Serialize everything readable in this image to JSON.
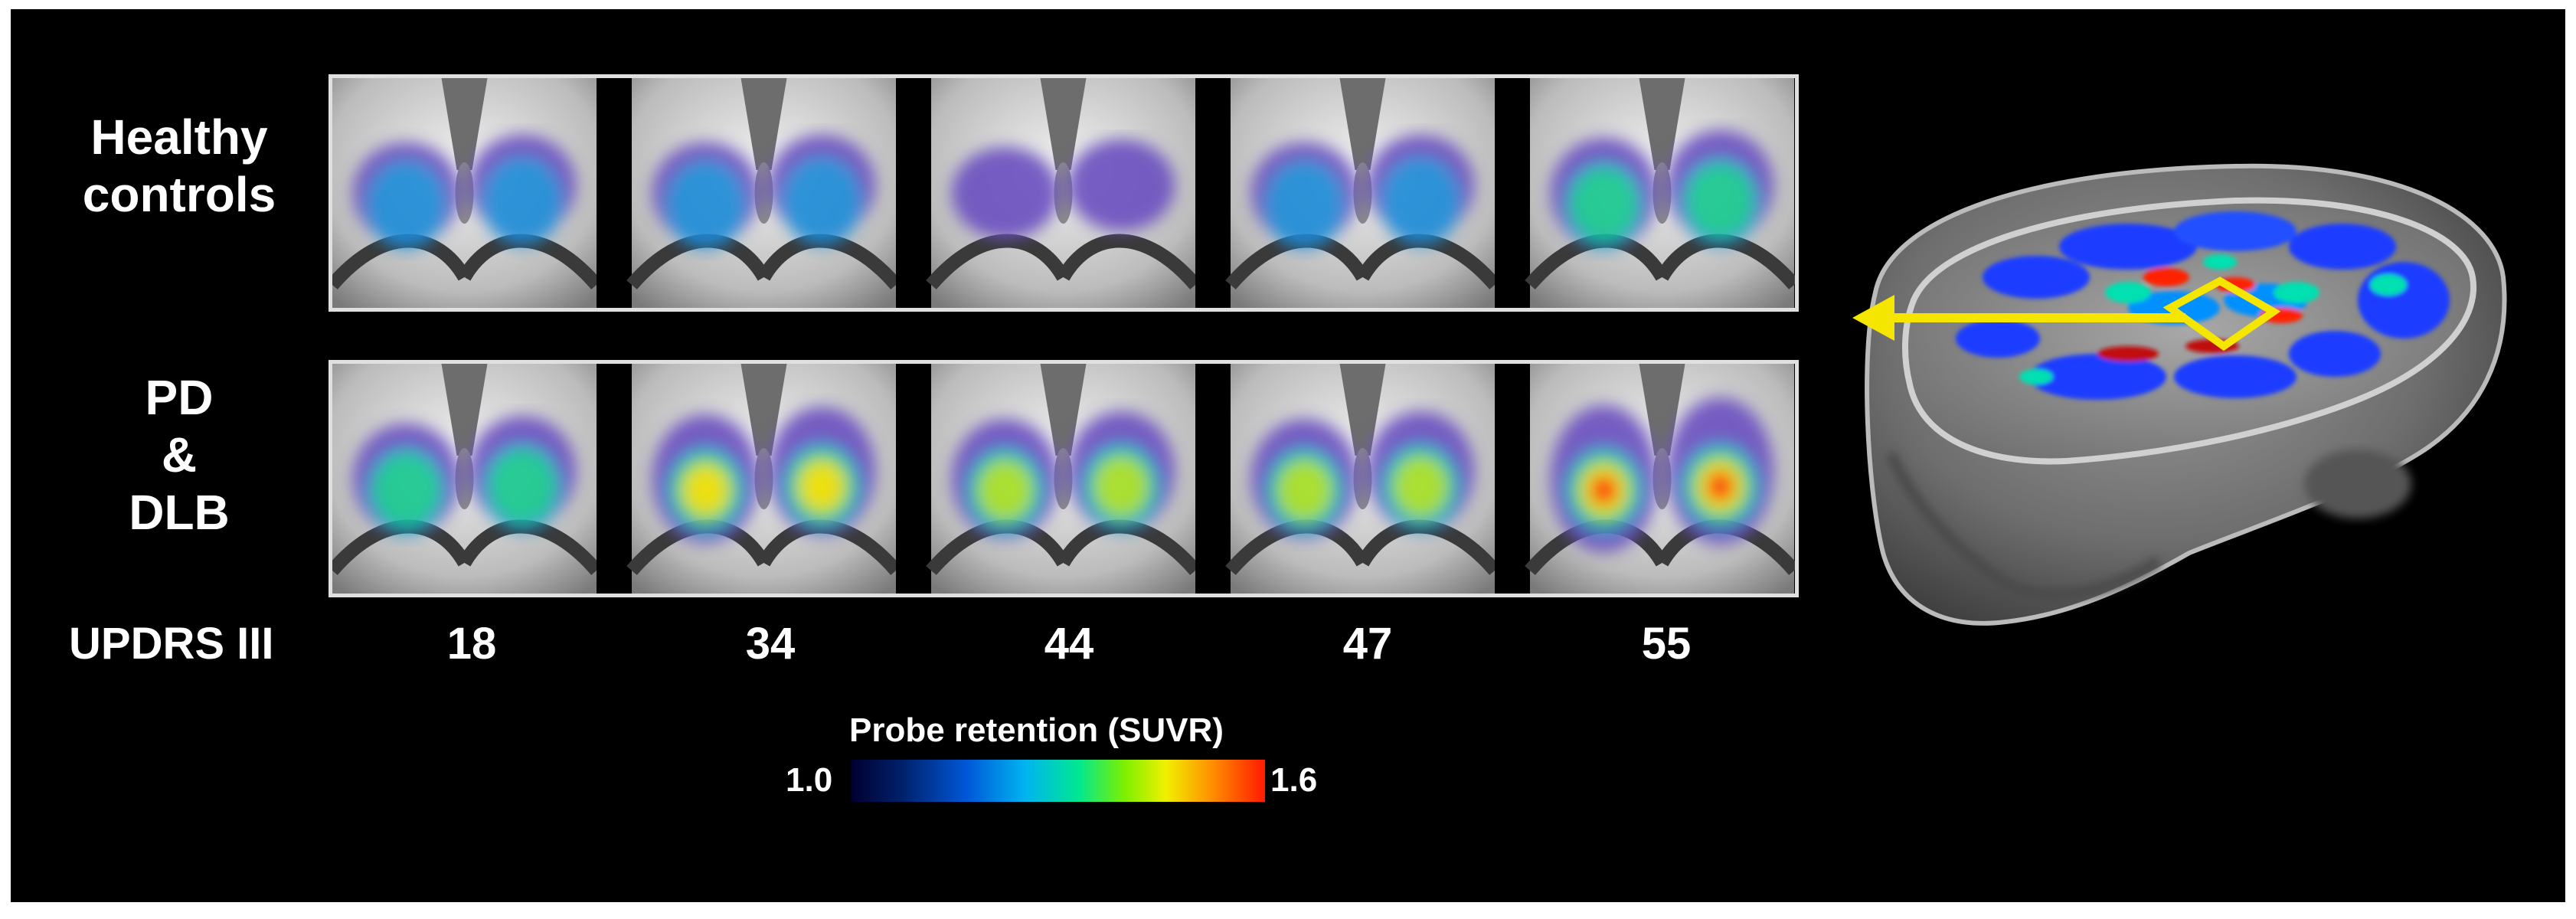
{
  "rows": [
    {
      "label_lines": [
        "Healthy",
        "controls"
      ]
    },
    {
      "label_lines": [
        "PD",
        "&",
        "DLB"
      ]
    }
  ],
  "score_label": "UPDRS III",
  "scores": [
    "18",
    "34",
    "44",
    "47",
    "55"
  ],
  "colorbar": {
    "title": "Probe retention (SUVR)",
    "min": "1.0",
    "max": "1.6",
    "colors": [
      "#000030",
      "#0058d8",
      "#00b4f0",
      "#00e890",
      "#7cf000",
      "#f0f000",
      "#ff9000",
      "#ff1a00"
    ]
  },
  "arrow_color": "#f5e600",
  "frame_color": "#e0e0e0"
}
